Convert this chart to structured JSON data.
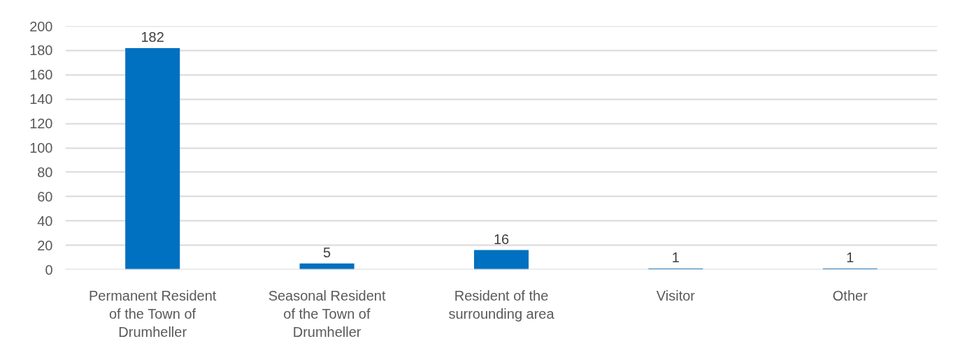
{
  "chart_data": {
    "type": "bar",
    "categories": [
      "Permanent Resident of the Town of Drumheller",
      "Seasonal Resident of the Town of Drumheller",
      "Resident of the surrounding area",
      "Visitor",
      "Other"
    ],
    "values": [
      182,
      5,
      16,
      1,
      1
    ],
    "color": "#0070c0",
    "ylim": [
      0,
      200
    ],
    "yticks": [
      0,
      20,
      40,
      60,
      80,
      100,
      120,
      140,
      160,
      180,
      200
    ],
    "grid": "y",
    "data_labels": true
  }
}
